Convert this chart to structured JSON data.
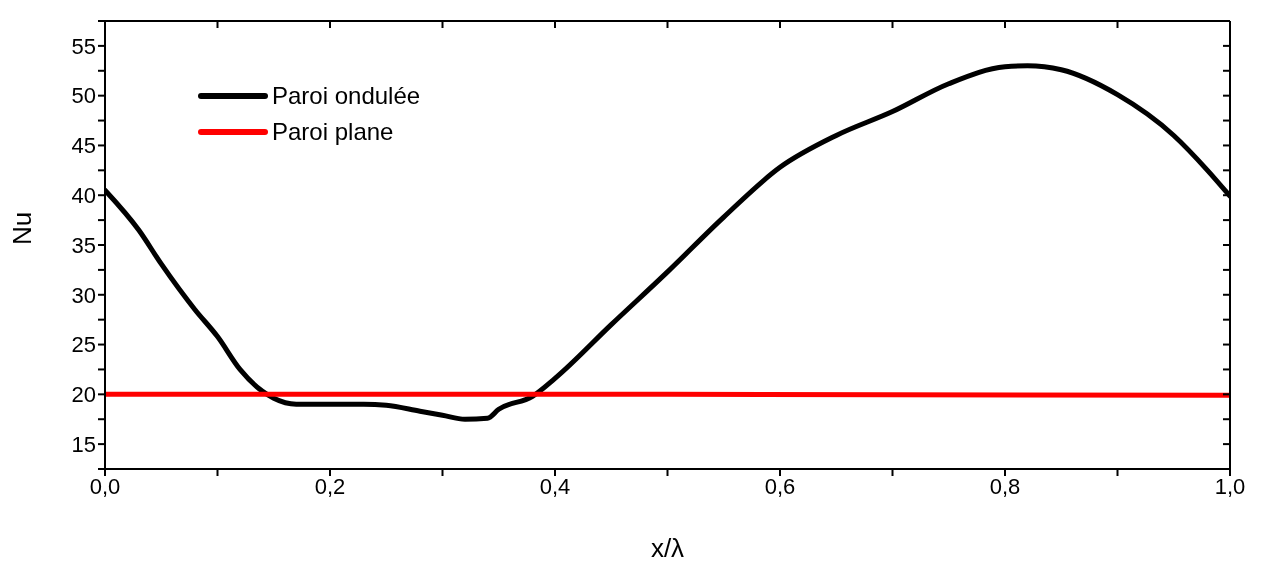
{
  "chart_data": {
    "type": "line",
    "xlabel": "x/λ",
    "ylabel": "Nu",
    "xlim": [
      0,
      1
    ],
    "ylim": [
      12.5,
      57.5
    ],
    "xticks": [
      {
        "value": 0,
        "label": "0,0"
      },
      {
        "value": 0.1,
        "label": null
      },
      {
        "value": 0.2,
        "label": "0,2"
      },
      {
        "value": 0.3,
        "label": null
      },
      {
        "value": 0.4,
        "label": "0,4"
      },
      {
        "value": 0.5,
        "label": null
      },
      {
        "value": 0.6,
        "label": "0,6"
      },
      {
        "value": 0.7,
        "label": null
      },
      {
        "value": 0.8,
        "label": "0,8"
      },
      {
        "value": 0.9,
        "label": null
      },
      {
        "value": 1,
        "label": "1,0"
      }
    ],
    "yticks": [
      {
        "value": 12.5,
        "label": null
      },
      15,
      {
        "value": 17.5,
        "label": null
      },
      20,
      {
        "value": 22.5,
        "label": null
      },
      25,
      {
        "value": 27.5,
        "label": null
      },
      30,
      {
        "value": 32.5,
        "label": null
      },
      35,
      {
        "value": 37.5,
        "label": null
      },
      40,
      {
        "value": 42.5,
        "label": null
      },
      45,
      {
        "value": 47.5,
        "label": null
      },
      50,
      {
        "value": 52.5,
        "label": null
      },
      55,
      {
        "value": 57.5,
        "label": null
      }
    ],
    "legend": "top left",
    "marker": "none",
    "line_style": "solid",
    "series": [
      {
        "name": "Paroi ondulée",
        "color": "#000000",
        "x": [
          0,
          0.03,
          0.05,
          0.08,
          0.1,
          0.12,
          0.14,
          0.15,
          0.17,
          0.2,
          0.23,
          0.25,
          0.28,
          0.3,
          0.32,
          0.34,
          0.35,
          0.38,
          0.4,
          0.45,
          0.5,
          0.55,
          0.6,
          0.65,
          0.7,
          0.75,
          0.8,
          0.82,
          0.85,
          0.9,
          0.95,
          0.98,
          1
        ],
        "values": [
          40.5,
          36.5,
          33.1,
          28.5,
          25.8,
          22.5,
          20.3,
          19.6,
          19.0,
          19.0,
          19.0,
          18.9,
          18.3,
          17.9,
          17.5,
          17.6,
          18.5,
          19.8,
          21.6,
          27,
          32.3,
          37.8,
          42.8,
          46.0,
          48.4,
          51.2,
          52.9,
          53,
          52.6,
          50.1,
          46,
          42.5,
          39.9
        ]
      },
      {
        "name": "Paroi plane",
        "color": "#ff0000",
        "x": [
          0,
          0.5,
          1
        ],
        "values": [
          20,
          20,
          19.9
        ]
      }
    ]
  }
}
